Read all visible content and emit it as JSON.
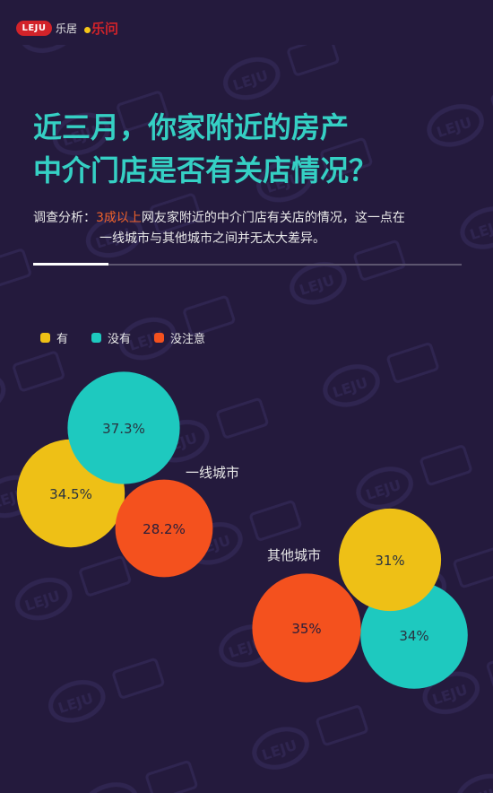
{
  "brand": {
    "leju_logo": "LEJU",
    "leju_cn": "乐居",
    "lewen_logo": "乐问"
  },
  "title_lines": [
    "近三月，你家附近的房产",
    "中介门店是否有关店情况？"
  ],
  "analysis": {
    "prefix": "调查分析：",
    "highlight": "3成以上",
    "rest": "网友家附近的中介门店有关店的情况，这一点在",
    "line2": "一线城市与其他城市之间并无太大差异。"
  },
  "colors": {
    "yes": "#eec016",
    "no": "#1ec9bf",
    "unnoticed": "#f4511e",
    "title": "#35d0c4",
    "background": "#241a3d"
  },
  "chart_data": {
    "type": "bubble",
    "legend_position": "top-left",
    "legend": [
      {
        "key": "yes",
        "label": "有"
      },
      {
        "key": "no",
        "label": "没有"
      },
      {
        "key": "unnoticed",
        "label": "没注意"
      }
    ],
    "groups": [
      {
        "label": "一线城市",
        "values": {
          "yes": 34.5,
          "no": 37.3,
          "unnoticed": 28.2
        },
        "labels": {
          "yes": "34.5%",
          "no": "37.3%",
          "unnoticed": "28.2%"
        }
      },
      {
        "label": "其他城市",
        "values": {
          "yes": 31,
          "no": 34,
          "unnoticed": 35
        },
        "labels": {
          "yes": "31%",
          "no": "34%",
          "unnoticed": "35%"
        }
      }
    ]
  }
}
